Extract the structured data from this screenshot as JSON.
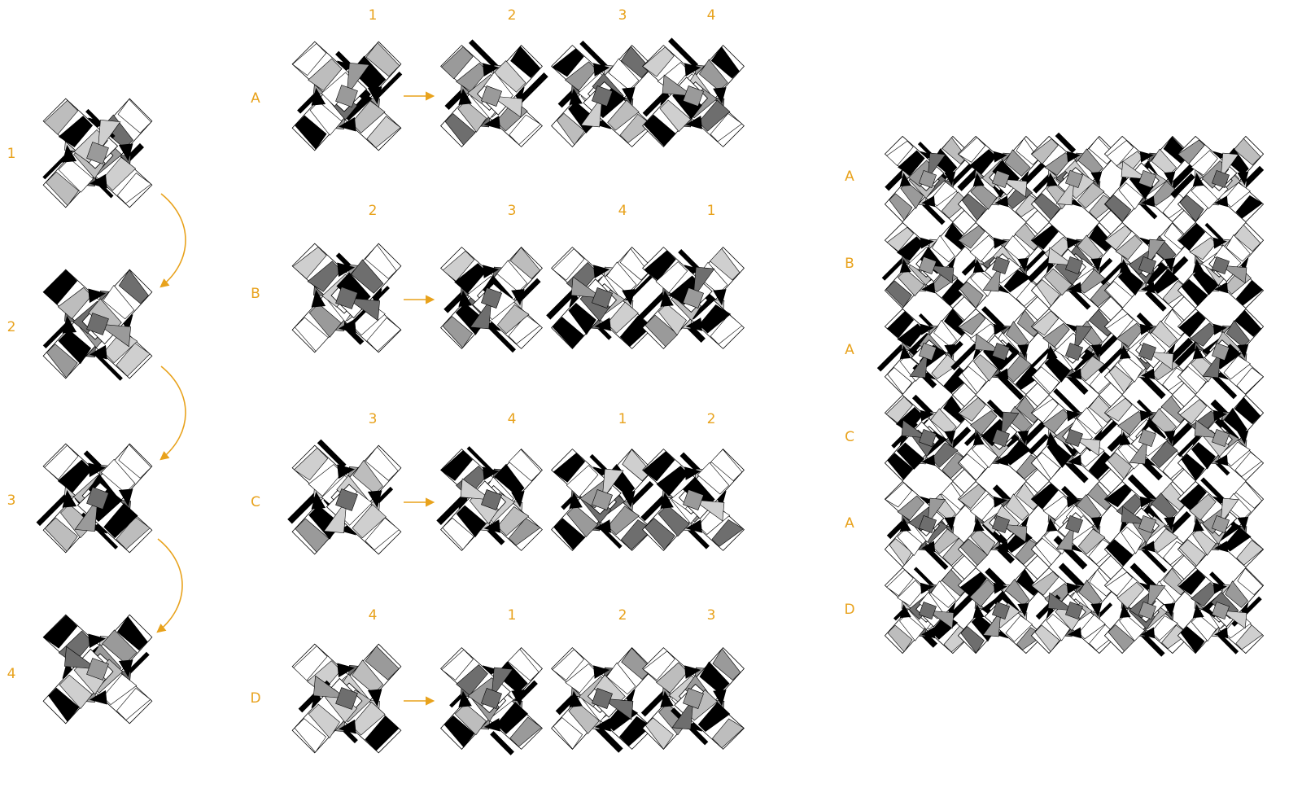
{
  "accent_color": "#e8a21c",
  "modules": [
    "1",
    "2",
    "3",
    "4"
  ],
  "sequence_column": {
    "labels": [
      "1",
      "2",
      "3",
      "4"
    ]
  },
  "rows": [
    {
      "row": "A",
      "modules": [
        "1",
        "2",
        "3",
        "4"
      ]
    },
    {
      "row": "B",
      "modules": [
        "2",
        "3",
        "4",
        "1"
      ]
    },
    {
      "row": "C",
      "modules": [
        "3",
        "4",
        "1",
        "2"
      ]
    },
    {
      "row": "D",
      "modules": [
        "4",
        "1",
        "2",
        "3"
      ]
    }
  ],
  "tiling": {
    "row_labels": [
      "A",
      "B",
      "A",
      "C",
      "A",
      "D"
    ]
  }
}
